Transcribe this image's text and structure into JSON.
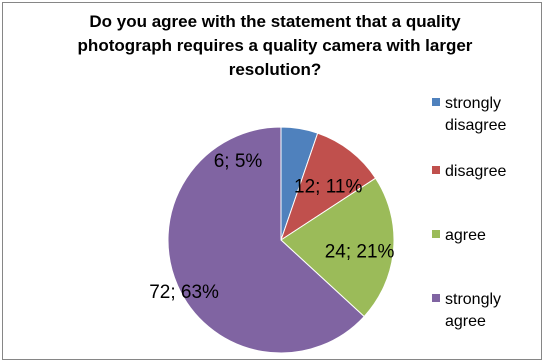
{
  "chart_data": {
    "type": "pie",
    "title": "Do you agree with the statement that a quality photograph requires a quality camera with larger resolution?",
    "categories": [
      "strongly disagree",
      "disagree",
      "agree",
      "strongly agree"
    ],
    "values": [
      6,
      12,
      24,
      72
    ],
    "percents": [
      5,
      11,
      21,
      63
    ],
    "data_labels": [
      "6; 5%",
      "12; 11%",
      "24; 21%",
      "72; 63%"
    ],
    "legend_lines": [
      [
        "strongly",
        "disagree"
      ],
      [
        "disagree"
      ],
      [
        "agree"
      ],
      [
        "strongly",
        "agree"
      ]
    ],
    "colors": [
      "#4f81bd",
      "#c0504d",
      "#9bbb59",
      "#8064a2"
    ],
    "legend_position": "right",
    "start_angle": "12 o'clock, clockwise"
  }
}
